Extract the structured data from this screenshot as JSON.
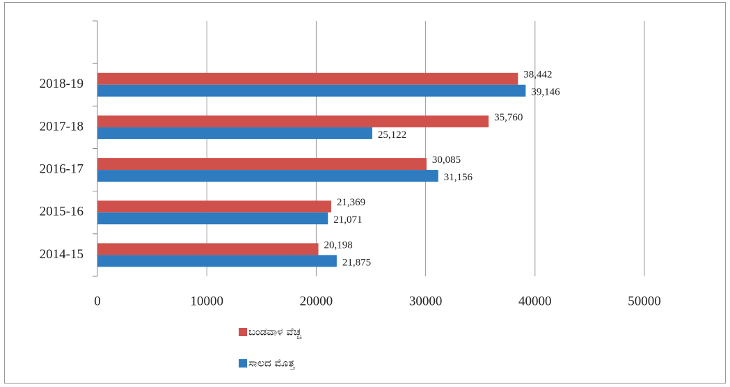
{
  "chart_data": {
    "type": "bar",
    "orientation": "horizontal",
    "categories": [
      "2014-15",
      "2015-16",
      "2016-17",
      "2017-18",
      "2018-19",
      null
    ],
    "series": [
      {
        "name": "ಬಂಡವಾಳ ವೆಚ್ಚ",
        "color": "#d0504b",
        "values": [
          20198,
          21369,
          30085,
          35760,
          38442,
          null
        ],
        "value_labels": [
          "20,198",
          "21,369",
          "30,085",
          "35,760",
          "38,442",
          null
        ]
      },
      {
        "name": "ಸಾಲದ ಮೊತ್ತ",
        "color": "#2e7bbf",
        "values": [
          21875,
          21071,
          31156,
          25122,
          39146,
          null
        ],
        "value_labels": [
          "21,875",
          "21,071",
          "31,156",
          "25,122",
          "39,146",
          null
        ]
      }
    ],
    "xlim": [
      0,
      50000
    ],
    "xticks": [
      0,
      10000,
      20000,
      30000,
      40000,
      50000
    ],
    "grid": true,
    "legend": "bottom"
  }
}
